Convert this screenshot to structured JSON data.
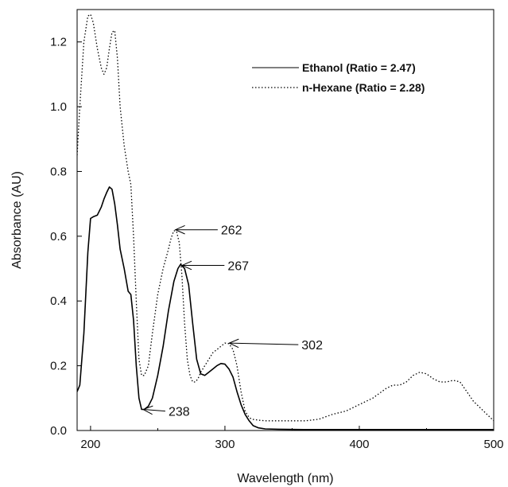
{
  "chart_data": {
    "type": "line",
    "title": "",
    "xlabel": "Wavelength (nm)",
    "ylabel": "Absorbance (AU)",
    "xlim": [
      190,
      500
    ],
    "ylim": [
      0,
      1.3
    ],
    "x_ticks": [
      "200",
      "300",
      "400",
      "500"
    ],
    "x_tick_values": [
      200,
      300,
      400,
      500
    ],
    "y_ticks": [
      "0.0",
      "0.2",
      "0.4",
      "0.6",
      "0.8",
      "1.0",
      "1.2"
    ],
    "y_tick_values": [
      0,
      0.2,
      0.4,
      0.6,
      0.8,
      1.0,
      1.2
    ],
    "grid": false,
    "legend_position": "top-right",
    "series": [
      {
        "name": "Ethanol (Ratio = 2.47)",
        "style": "solid",
        "color": "#000000",
        "x": [
          190,
          192,
          195,
          198,
          200,
          202,
          205,
          208,
          210,
          212,
          214,
          216,
          218,
          220,
          222,
          225,
          228,
          230,
          232,
          234,
          236,
          238,
          240,
          243,
          246,
          250,
          254,
          258,
          262,
          265,
          267,
          270,
          273,
          276,
          279,
          282,
          285,
          288,
          291,
          294,
          297,
          300,
          303,
          306,
          309,
          312,
          315,
          318,
          321,
          325,
          330,
          340,
          360,
          400,
          450,
          500
        ],
        "y": [
          0.12,
          0.14,
          0.3,
          0.55,
          0.655,
          0.66,
          0.665,
          0.69,
          0.715,
          0.735,
          0.752,
          0.745,
          0.7,
          0.635,
          0.56,
          0.5,
          0.43,
          0.42,
          0.34,
          0.2,
          0.1,
          0.065,
          0.065,
          0.075,
          0.1,
          0.17,
          0.26,
          0.37,
          0.46,
          0.5,
          0.513,
          0.5,
          0.45,
          0.33,
          0.22,
          0.175,
          0.17,
          0.18,
          0.19,
          0.2,
          0.207,
          0.205,
          0.19,
          0.165,
          0.12,
          0.08,
          0.05,
          0.03,
          0.015,
          0.008,
          0.005,
          0.004,
          0.003,
          0.003,
          0.003,
          0.003
        ]
      },
      {
        "name": "n-Hexane (Ratio = 2.28)",
        "style": "dotted",
        "color": "#000000",
        "x": [
          190,
          192,
          195,
          198,
          200,
          202,
          205,
          208,
          210,
          212,
          214,
          216,
          218,
          220,
          222,
          225,
          228,
          230,
          232,
          234,
          236,
          238,
          240,
          243,
          246,
          250,
          254,
          258,
          260,
          262,
          264,
          266,
          268,
          270,
          272,
          274,
          276,
          278,
          280,
          282,
          285,
          288,
          291,
          294,
          297,
          300,
          303,
          306,
          309,
          312,
          315,
          318,
          320,
          325,
          330,
          340,
          350,
          360,
          370,
          380,
          390,
          400,
          410,
          420,
          425,
          430,
          435,
          440,
          445,
          450,
          455,
          460,
          465,
          470,
          475,
          480,
          485,
          490,
          495,
          500
        ],
        "y": [
          0.85,
          1.0,
          1.2,
          1.28,
          1.285,
          1.26,
          1.18,
          1.12,
          1.1,
          1.12,
          1.18,
          1.23,
          1.235,
          1.15,
          1.0,
          0.88,
          0.8,
          0.76,
          0.6,
          0.4,
          0.22,
          0.17,
          0.17,
          0.2,
          0.3,
          0.42,
          0.5,
          0.56,
          0.595,
          0.617,
          0.615,
          0.58,
          0.48,
          0.33,
          0.22,
          0.17,
          0.15,
          0.15,
          0.16,
          0.18,
          0.2,
          0.22,
          0.24,
          0.25,
          0.26,
          0.27,
          0.268,
          0.25,
          0.2,
          0.12,
          0.06,
          0.04,
          0.035,
          0.032,
          0.03,
          0.03,
          0.03,
          0.03,
          0.035,
          0.05,
          0.06,
          0.08,
          0.1,
          0.13,
          0.14,
          0.14,
          0.15,
          0.17,
          0.18,
          0.175,
          0.16,
          0.15,
          0.15,
          0.155,
          0.15,
          0.12,
          0.09,
          0.07,
          0.05,
          0.03
        ]
      }
    ],
    "annotations": [
      {
        "label": "262",
        "x": 262,
        "y": 0.62,
        "text_x": 297,
        "text_y": 0.62
      },
      {
        "label": "267",
        "x": 267,
        "y": 0.51,
        "text_x": 302,
        "text_y": 0.51
      },
      {
        "label": "302",
        "x": 302,
        "y": 0.27,
        "text_x": 357,
        "text_y": 0.265
      },
      {
        "label": "238",
        "x": 238,
        "y": 0.065,
        "text_x": 258,
        "text_y": 0.06
      }
    ]
  }
}
